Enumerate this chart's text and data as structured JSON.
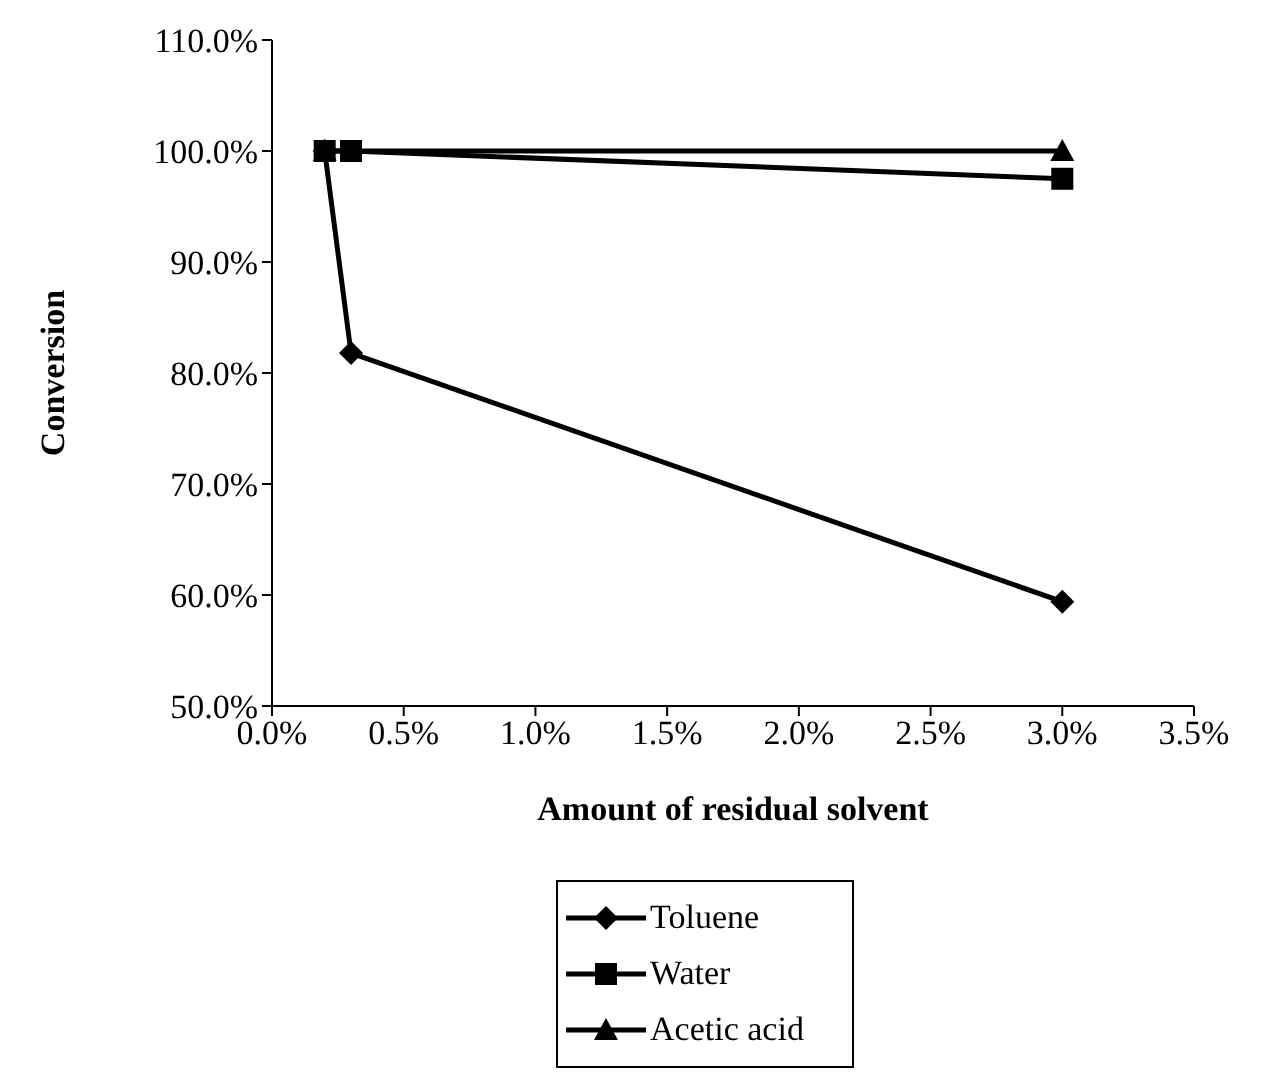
{
  "chart_data": {
    "type": "line",
    "xlabel": "Amount of residual solvent",
    "ylabel": "Conversion",
    "xlim": [
      0,
      3.5
    ],
    "xticks": [
      {
        "value": 0,
        "label": "0.0%"
      },
      {
        "value": 0.5,
        "label": "0.5%"
      },
      {
        "value": 1,
        "label": "1.0%"
      },
      {
        "value": 1.5,
        "label": "1.5%"
      },
      {
        "value": 2,
        "label": "2.0%"
      },
      {
        "value": 2.5,
        "label": "2.5%"
      },
      {
        "value": 3,
        "label": "3.0%"
      },
      {
        "value": 3.5,
        "label": "3.5%"
      }
    ],
    "ylim": [
      50,
      110
    ],
    "yticks": [
      {
        "value": 50,
        "label": "50.0%"
      },
      {
        "value": 60,
        "label": "60.0%"
      },
      {
        "value": 70,
        "label": "70.0%"
      },
      {
        "value": 80,
        "label": "80.0%"
      },
      {
        "value": 90,
        "label": "90.0%"
      },
      {
        "value": 100,
        "label": "100.0%"
      },
      {
        "value": 110,
        "label": "110.0%"
      }
    ],
    "grid": false,
    "legend": "bottom",
    "line_style": "solid",
    "series": [
      {
        "name": "Toluene",
        "color": "#000000",
        "marker": "diamond",
        "x": [
          0.2,
          0.3,
          3.0
        ],
        "values": [
          100,
          81.8,
          59.4
        ]
      },
      {
        "name": "Water",
        "color": "#000000",
        "marker": "square",
        "x": [
          0.2,
          0.3,
          3.0
        ],
        "values": [
          100,
          100,
          97.5
        ]
      },
      {
        "name": "Acetic acid",
        "color": "#000000",
        "marker": "triangle",
        "x": [
          0.2,
          3.0
        ],
        "values": [
          100,
          100
        ]
      }
    ]
  }
}
